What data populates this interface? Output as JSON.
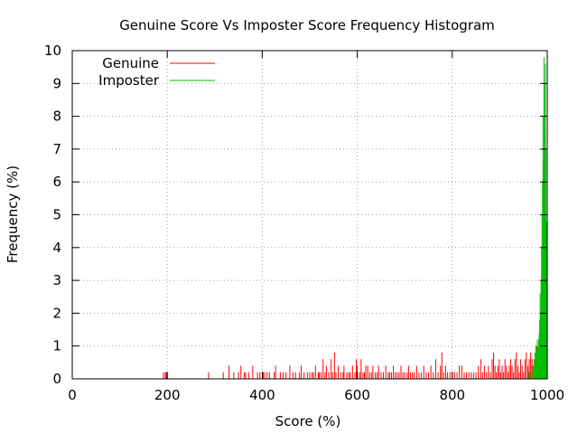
{
  "chart_data": {
    "type": "bar",
    "title": "Genuine Score Vs Imposter Score Frequency Histogram",
    "xlabel": "Score (%)",
    "ylabel": "Frequency (%)",
    "xlim": [
      0,
      1000
    ],
    "ylim": [
      0,
      10
    ],
    "xticks": [
      "0",
      "200",
      "400",
      "600",
      "800",
      "1000"
    ],
    "yticks": [
      "0",
      "1",
      "2",
      "3",
      "4",
      "5",
      "6",
      "7",
      "8",
      "9",
      "10"
    ],
    "grid": true,
    "legend_position": "top-left",
    "series": [
      {
        "name": "Genuine",
        "color": "#ff0000",
        "points": [
          [
            192,
            0.2
          ],
          [
            196,
            0.2
          ],
          [
            198,
            0.2
          ],
          [
            200,
            0.1
          ],
          [
            287,
            0.2
          ],
          [
            318,
            0.2
          ],
          [
            330,
            0.4
          ],
          [
            340,
            0.2
          ],
          [
            350,
            0.2
          ],
          [
            355,
            0.4
          ],
          [
            362,
            0.2
          ],
          [
            365,
            0.2
          ],
          [
            372,
            0.2
          ],
          [
            380,
            0.4
          ],
          [
            390,
            0.2
          ],
          [
            395,
            0.2
          ],
          [
            402,
            0.2
          ],
          [
            405,
            0.2
          ],
          [
            410,
            0.2
          ],
          [
            415,
            0.2
          ],
          [
            425,
            0.2
          ],
          [
            428,
            0.4
          ],
          [
            438,
            0.2
          ],
          [
            444,
            0.2
          ],
          [
            450,
            0.2
          ],
          [
            458,
            0.4
          ],
          [
            465,
            0.2
          ],
          [
            470,
            0.2
          ],
          [
            478,
            0.2
          ],
          [
            482,
            0.4
          ],
          [
            488,
            0.2
          ],
          [
            495,
            0.2
          ],
          [
            500,
            0.2
          ],
          [
            505,
            0.2
          ],
          [
            508,
            0.2
          ],
          [
            512,
            0.4
          ],
          [
            518,
            0.2
          ],
          [
            520,
            0.2
          ],
          [
            524,
            0.2
          ],
          [
            528,
            0.6
          ],
          [
            532,
            0.2
          ],
          [
            535,
            0.4
          ],
          [
            540,
            0.2
          ],
          [
            545,
            0.6
          ],
          [
            548,
            0.2
          ],
          [
            552,
            0.8
          ],
          [
            555,
            0.2
          ],
          [
            560,
            0.4
          ],
          [
            565,
            0.2
          ],
          [
            570,
            0.2
          ],
          [
            572,
            0.4
          ],
          [
            578,
            0.2
          ],
          [
            582,
            0.2
          ],
          [
            585,
            0.2
          ],
          [
            590,
            0.4
          ],
          [
            595,
            0.2
          ],
          [
            598,
            0.6
          ],
          [
            600,
            0.4
          ],
          [
            605,
            0.2
          ],
          [
            608,
            0.6
          ],
          [
            612,
            0.2
          ],
          [
            615,
            0.2
          ],
          [
            618,
            0.4
          ],
          [
            622,
            0.4
          ],
          [
            626,
            0.2
          ],
          [
            630,
            0.2
          ],
          [
            633,
            0.4
          ],
          [
            638,
            0.2
          ],
          [
            642,
            0.2
          ],
          [
            645,
            0.4
          ],
          [
            650,
            0.2
          ],
          [
            655,
            0.2
          ],
          [
            660,
            0.4
          ],
          [
            665,
            0.2
          ],
          [
            668,
            0.2
          ],
          [
            672,
            0.2
          ],
          [
            676,
            0.4
          ],
          [
            680,
            0.2
          ],
          [
            684,
            0.2
          ],
          [
            688,
            0.2
          ],
          [
            692,
            0.4
          ],
          [
            696,
            0.2
          ],
          [
            700,
            0.2
          ],
          [
            705,
            0.2
          ],
          [
            708,
            0.4
          ],
          [
            712,
            0.2
          ],
          [
            716,
            0.2
          ],
          [
            720,
            0.2
          ],
          [
            725,
            0.4
          ],
          [
            730,
            0.2
          ],
          [
            735,
            0.2
          ],
          [
            740,
            0.4
          ],
          [
            745,
            0.2
          ],
          [
            750,
            0.2
          ],
          [
            755,
            0.4
          ],
          [
            760,
            0.2
          ],
          [
            765,
            0.6
          ],
          [
            770,
            0.2
          ],
          [
            775,
            0.4
          ],
          [
            778,
            0.8
          ],
          [
            782,
            0.2
          ],
          [
            786,
            0.4
          ],
          [
            790,
            0.2
          ],
          [
            795,
            0.2
          ],
          [
            800,
            0.2
          ],
          [
            805,
            0.2
          ],
          [
            810,
            0.2
          ],
          [
            815,
            0.4
          ],
          [
            820,
            0.4
          ],
          [
            825,
            0.2
          ],
          [
            830,
            0.2
          ],
          [
            835,
            0.2
          ],
          [
            840,
            0.2
          ],
          [
            845,
            0.2
          ],
          [
            850,
            0.2
          ],
          [
            855,
            0.4
          ],
          [
            860,
            0.6
          ],
          [
            864,
            0.2
          ],
          [
            868,
            0.4
          ],
          [
            872,
            0.2
          ],
          [
            876,
            0.4
          ],
          [
            880,
            0.2
          ],
          [
            884,
            0.6
          ],
          [
            887,
            0.8
          ],
          [
            890,
            0.4
          ],
          [
            893,
            0.2
          ],
          [
            896,
            0.4
          ],
          [
            899,
            0.6
          ],
          [
            902,
            0.2
          ],
          [
            905,
            0.4
          ],
          [
            908,
            0.2
          ],
          [
            911,
            0.6
          ],
          [
            914,
            0.4
          ],
          [
            917,
            0.2
          ],
          [
            920,
            0.4
          ],
          [
            923,
            0.6
          ],
          [
            926,
            0.4
          ],
          [
            929,
            0.2
          ],
          [
            932,
            0.6
          ],
          [
            935,
            0.8
          ],
          [
            938,
            0.4
          ],
          [
            941,
            0.2
          ],
          [
            944,
            0.6
          ],
          [
            947,
            0.4
          ],
          [
            950,
            0.2
          ],
          [
            953,
            0.6
          ],
          [
            956,
            0.8
          ],
          [
            959,
            0.4
          ],
          [
            962,
            0.6
          ],
          [
            965,
            0.8
          ],
          [
            968,
            0.6
          ],
          [
            971,
            0.4
          ],
          [
            974,
            0.6
          ],
          [
            977,
            1.0
          ],
          [
            980,
            0.6
          ],
          [
            983,
            0.4
          ],
          [
            986,
            0.2
          ]
        ]
      },
      {
        "name": "Imposter",
        "color": "#00c000",
        "points": [
          [
            960,
            0.2
          ],
          [
            964,
            0.2
          ],
          [
            967,
            0.4
          ],
          [
            970,
            0.4
          ],
          [
            972,
            0.6
          ],
          [
            974,
            0.8
          ],
          [
            976,
            1.0
          ],
          [
            977,
            0.4
          ],
          [
            978,
            0.8
          ],
          [
            979,
            1.2
          ],
          [
            980,
            0.6
          ],
          [
            981,
            1.0
          ],
          [
            982,
            1.2
          ],
          [
            983,
            1.4
          ],
          [
            984,
            1.8
          ],
          [
            985,
            2.6
          ],
          [
            986,
            2.0
          ],
          [
            987,
            3.0
          ],
          [
            988,
            4.0
          ],
          [
            989,
            5.0
          ],
          [
            990,
            6.0
          ],
          [
            991,
            8.0
          ],
          [
            992,
            6.6
          ],
          [
            993,
            9.8
          ],
          [
            994,
            9.0
          ],
          [
            995,
            7.6
          ],
          [
            996,
            9.6
          ],
          [
            997,
            7.0
          ],
          [
            998,
            4.8
          ],
          [
            999,
            2.6
          ],
          [
            1000,
            0.8
          ]
        ]
      }
    ]
  }
}
